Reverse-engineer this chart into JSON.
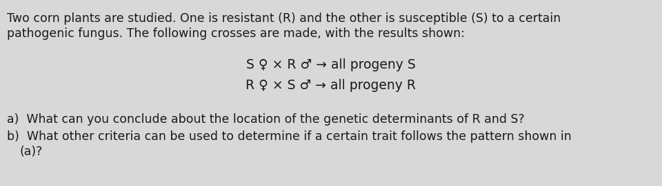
{
  "bg_color": "#d8d8d8",
  "text_color": "#1a1a1a",
  "figsize": [
    9.6,
    2.71
  ],
  "dpi": 100,
  "font_size_body": 12.5,
  "font_size_cross": 13.5,
  "line1": "Two corn plants are studied. One is resistant (R) and the other is susceptible (S) to a certain",
  "line2": "pathogenic fungus. The following crosses are made, with the results shown:",
  "cross1": "S ♀ × R ♂ → all progeny S",
  "cross2": "R ♀ × S ♂ → all progeny R",
  "qa": "a)  What can you conclude about the location of the genetic determinants of R and S?",
  "qb": "b)  What other criteria can be used to determine if a certain trait follows the pattern shown in",
  "qb2": "     (a)?"
}
